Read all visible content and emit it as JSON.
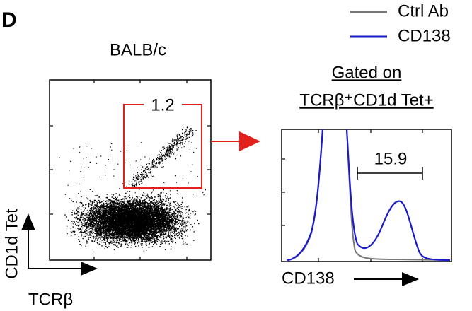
{
  "panel_label": "D",
  "legend": [
    {
      "label": "Ctrl Ab",
      "color": "#777777"
    },
    {
      "label": "CD138",
      "color": "#1a1acc"
    }
  ],
  "left_plot": {
    "title": "BALB/c",
    "gate_value": "1.2",
    "x_label": "TCRβ",
    "y_label": "CD1d Tet"
  },
  "right_plot": {
    "gating_line_1": "Gated on",
    "gating_line_2": "TCRβ⁺CD1d Tet+",
    "bracket_value": "15.9",
    "x_label": "CD138"
  }
}
